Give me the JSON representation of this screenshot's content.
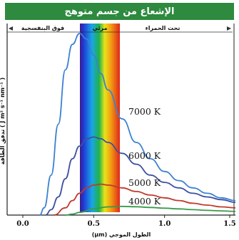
{
  "chart_data": {
    "type": "line",
    "title": "الإشعاع من جسم متوهج",
    "xlabel": "الطول الموجي (μm)",
    "ylabel": "تدفق الطاقة ( J m² s⁻¹ nm⁻¹ )",
    "xlim": [
      0.0,
      1.5
    ],
    "ylim": [
      0,
      1
    ],
    "x_ticks": [
      "0.0",
      "0.5",
      "1.0",
      "1.5"
    ],
    "grid": false,
    "regions": [
      {
        "label": "فوق البنفسجية",
        "range": [
          0.0,
          0.4
        ]
      },
      {
        "label": "مرئي",
        "range": [
          0.4,
          0.7
        ]
      },
      {
        "label": "تحت الحمراء",
        "range": [
          0.7,
          1.5
        ]
      }
    ],
    "series": [
      {
        "name": "7000 K",
        "color": "#3c82d0",
        "points": [
          [
            0.12,
            0.0
          ],
          [
            0.15,
            0.04
          ],
          [
            0.2,
            0.22
          ],
          [
            0.25,
            0.5
          ],
          [
            0.3,
            0.8
          ],
          [
            0.35,
            0.94
          ],
          [
            0.4,
            1.0
          ],
          [
            0.45,
            0.97
          ],
          [
            0.5,
            0.88
          ],
          [
            0.55,
            0.78
          ],
          [
            0.6,
            0.69
          ],
          [
            0.7,
            0.53
          ],
          [
            0.8,
            0.4
          ],
          [
            0.9,
            0.31
          ],
          [
            1.0,
            0.24
          ],
          [
            1.1,
            0.19
          ],
          [
            1.2,
            0.15
          ],
          [
            1.3,
            0.12
          ],
          [
            1.4,
            0.095
          ],
          [
            1.5,
            0.08
          ]
        ]
      },
      {
        "name": "6000 K",
        "color": "#3d4fa0",
        "points": [
          [
            0.16,
            0.0
          ],
          [
            0.2,
            0.03
          ],
          [
            0.25,
            0.1
          ],
          [
            0.3,
            0.2
          ],
          [
            0.35,
            0.31
          ],
          [
            0.4,
            0.38
          ],
          [
            0.45,
            0.42
          ],
          [
            0.5,
            0.43
          ],
          [
            0.55,
            0.42
          ],
          [
            0.6,
            0.4
          ],
          [
            0.7,
            0.34
          ],
          [
            0.8,
            0.28
          ],
          [
            0.9,
            0.22
          ],
          [
            1.0,
            0.18
          ],
          [
            1.1,
            0.15
          ],
          [
            1.2,
            0.12
          ],
          [
            1.3,
            0.1
          ],
          [
            1.4,
            0.085
          ],
          [
            1.5,
            0.07
          ]
        ]
      },
      {
        "name": "5000 K",
        "color": "#c0392b",
        "points": [
          [
            0.22,
            0.0
          ],
          [
            0.3,
            0.04
          ],
          [
            0.35,
            0.08
          ],
          [
            0.4,
            0.12
          ],
          [
            0.45,
            0.15
          ],
          [
            0.5,
            0.165
          ],
          [
            0.55,
            0.17
          ],
          [
            0.6,
            0.165
          ],
          [
            0.7,
            0.15
          ],
          [
            0.8,
            0.13
          ],
          [
            0.9,
            0.11
          ],
          [
            1.0,
            0.095
          ],
          [
            1.1,
            0.08
          ],
          [
            1.2,
            0.065
          ],
          [
            1.3,
            0.055
          ],
          [
            1.4,
            0.045
          ],
          [
            1.5,
            0.04
          ]
        ]
      },
      {
        "name": "4000 K",
        "color": "#3a9a4a",
        "points": [
          [
            0.3,
            0.0
          ],
          [
            0.35,
            0.005
          ],
          [
            0.4,
            0.015
          ],
          [
            0.5,
            0.035
          ],
          [
            0.6,
            0.045
          ],
          [
            0.7,
            0.048
          ],
          [
            0.8,
            0.046
          ],
          [
            0.9,
            0.042
          ],
          [
            1.0,
            0.038
          ],
          [
            1.1,
            0.034
          ],
          [
            1.2,
            0.03
          ],
          [
            1.3,
            0.026
          ],
          [
            1.4,
            0.023
          ],
          [
            1.5,
            0.02
          ]
        ]
      }
    ]
  }
}
